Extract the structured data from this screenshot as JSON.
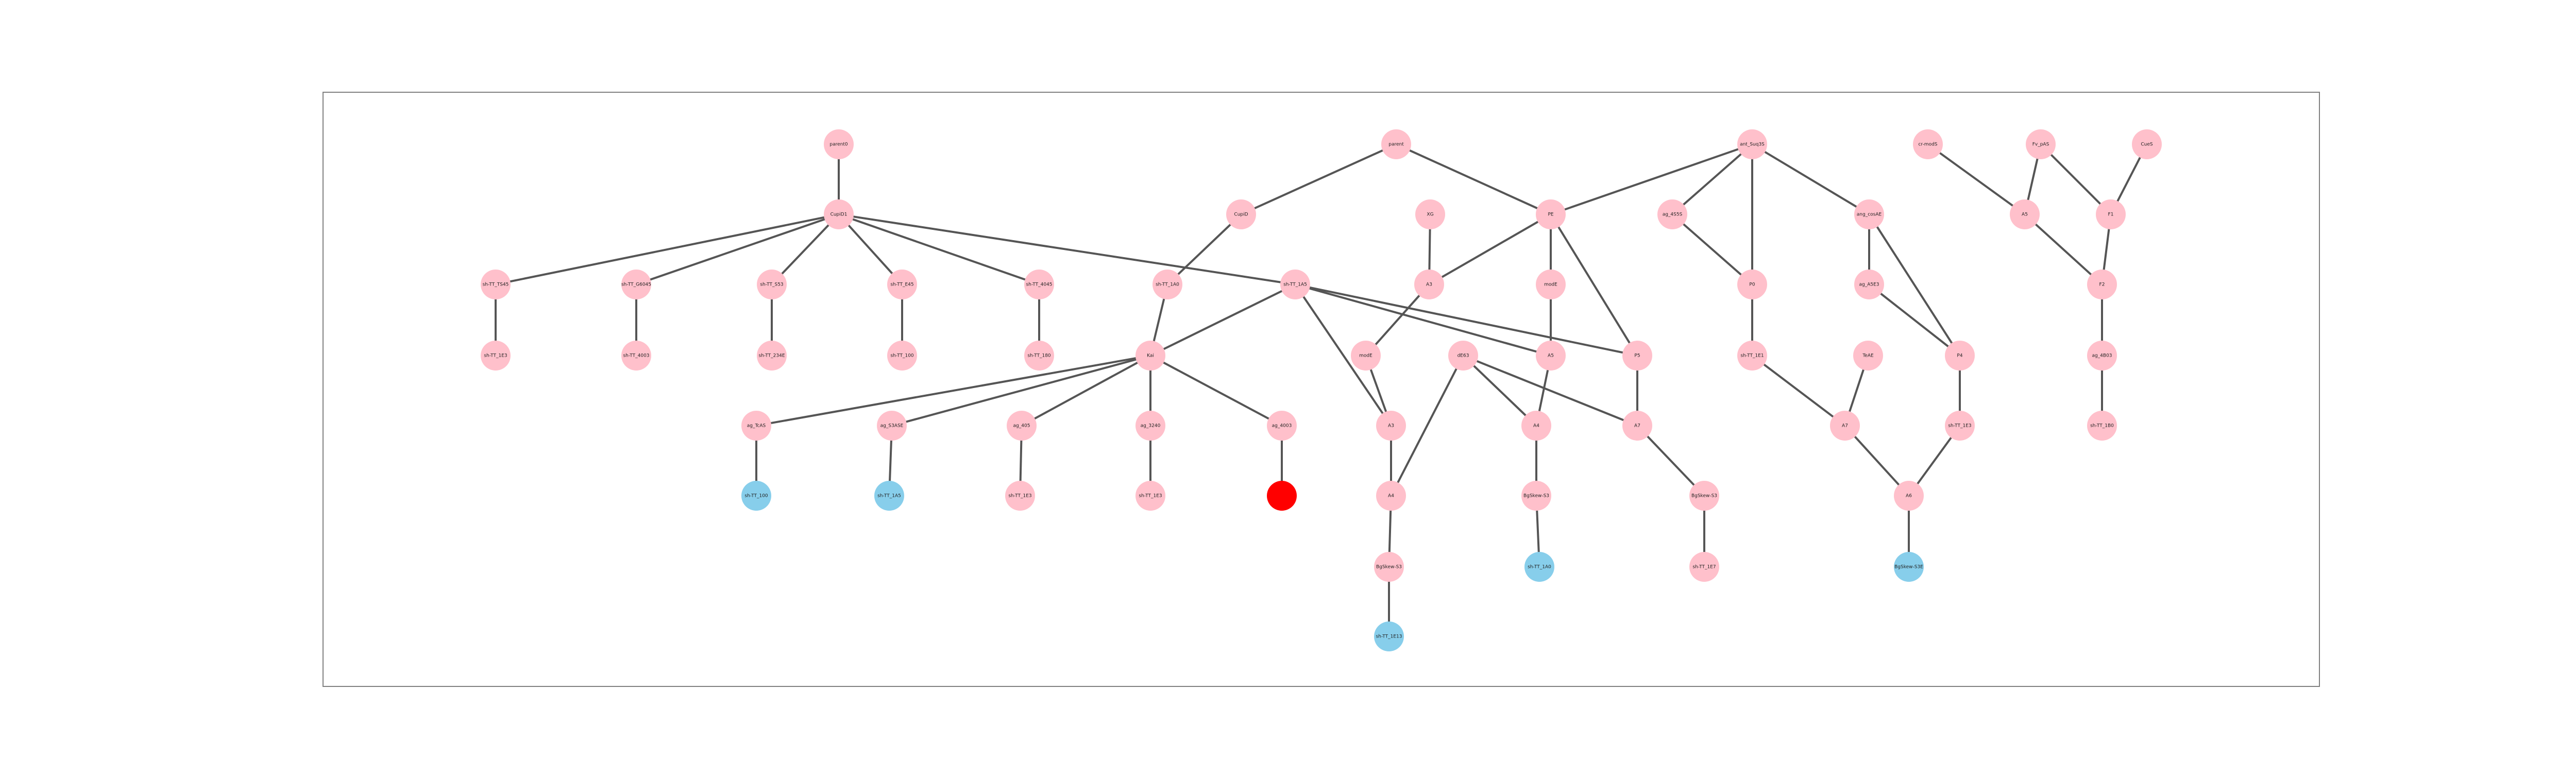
{
  "colors": {
    "default_node": "#ffc0cb",
    "leaf_node": "#87ceeb",
    "highlight_node": "#ff0000",
    "edge": "#555555",
    "frame": "#808080"
  },
  "nodes": [
    {
      "id": "n1",
      "label": "parent0",
      "color": "default_node"
    },
    {
      "id": "n2",
      "label": "CupiD1",
      "color": "default_node"
    },
    {
      "id": "n3",
      "label": "sh-TT_TS45",
      "color": "default_node"
    },
    {
      "id": "n4",
      "label": "sh-TT_G6045",
      "color": "default_node"
    },
    {
      "id": "n5",
      "label": "sh-TT_S53",
      "color": "default_node"
    },
    {
      "id": "n6",
      "label": "sh-TT_E45",
      "color": "default_node"
    },
    {
      "id": "n7",
      "label": "sh-TT_4045",
      "color": "default_node"
    },
    {
      "id": "n8",
      "label": "sh-TT_1E3",
      "color": "default_node"
    },
    {
      "id": "n9",
      "label": "sh-TT_4003",
      "color": "default_node"
    },
    {
      "id": "n10",
      "label": "sh-TT_234E",
      "color": "default_node"
    },
    {
      "id": "n11",
      "label": "sh-TT_100",
      "color": "default_node"
    },
    {
      "id": "n12",
      "label": "sh-TT_180",
      "color": "default_node"
    },
    {
      "id": "n13",
      "label": "sh-TT_4005",
      "color": "default_node"
    },
    {
      "id": "n14",
      "label": "parent",
      "color": "default_node"
    },
    {
      "id": "n15",
      "label": "CupiD",
      "color": "default_node"
    },
    {
      "id": "n16",
      "label": "sh-TT_1A0",
      "color": "default_node"
    },
    {
      "id": "n17",
      "label": "sh-TT_1A5",
      "color": "default_node"
    },
    {
      "id": "n18",
      "label": "Kai",
      "color": "default_node"
    },
    {
      "id": "n19",
      "label": "ag_TcAS",
      "color": "default_node"
    },
    {
      "id": "n20",
      "label": "ag_S3ASE",
      "color": "default_node"
    },
    {
      "id": "n21",
      "label": "ag_405",
      "color": "default_node"
    },
    {
      "id": "n22",
      "label": "ag_3240",
      "color": "default_node"
    },
    {
      "id": "n23",
      "label": "ag_4003",
      "color": "default_node"
    },
    {
      "id": "n24",
      "label": "sh-TT_100",
      "color": "leaf_node"
    },
    {
      "id": "n25",
      "label": "sh-TT_1A5",
      "color": "leaf_node"
    },
    {
      "id": "n26",
      "label": "sh-TT_1E3",
      "color": "default_node"
    },
    {
      "id": "n27",
      "label": "sh-TT_1E3",
      "color": "default_node"
    },
    {
      "id": "n28",
      "label": "",
      "color": "highlight_node"
    },
    {
      "id": "n29",
      "label": "XG",
      "color": "default_node"
    },
    {
      "id": "n30",
      "label": "PE",
      "color": "default_node"
    },
    {
      "id": "n31",
      "label": "A3",
      "color": "default_node"
    },
    {
      "id": "n32",
      "label": "modE",
      "color": "default_node"
    },
    {
      "id": "n33",
      "label": "modE",
      "color": "default_node"
    },
    {
      "id": "n34",
      "label": "dE63",
      "color": "default_node"
    },
    {
      "id": "n35",
      "label": "A5",
      "color": "default_node"
    },
    {
      "id": "n36",
      "label": "P5",
      "color": "default_node"
    },
    {
      "id": "n37",
      "label": "A3",
      "color": "default_node"
    },
    {
      "id": "n38",
      "label": "A4",
      "color": "default_node"
    },
    {
      "id": "n39",
      "label": "A7",
      "color": "default_node"
    },
    {
      "id": "n40",
      "label": "A4",
      "color": "default_node"
    },
    {
      "id": "n41",
      "label": "BgSkew-S3",
      "color": "default_node"
    },
    {
      "id": "n42",
      "label": "BgSkew-S3",
      "color": "default_node"
    },
    {
      "id": "n43",
      "label": "BgSkew-S3",
      "color": "default_node"
    },
    {
      "id": "n44",
      "label": "sh-TT_1A0",
      "color": "leaf_node"
    },
    {
      "id": "n45",
      "label": "sh-TT_1E7",
      "color": "default_node"
    },
    {
      "id": "n46",
      "label": "sh-TT_1E13",
      "color": "leaf_node"
    },
    {
      "id": "n47",
      "label": "ant_Suq3S",
      "color": "default_node"
    },
    {
      "id": "n48",
      "label": "ag_4S5S",
      "color": "default_node"
    },
    {
      "id": "n49",
      "label": "P0",
      "color": "default_node"
    },
    {
      "id": "n50",
      "label": "ang_cosAE",
      "color": "default_node"
    },
    {
      "id": "n51",
      "label": "ag_A5E3",
      "color": "default_node"
    },
    {
      "id": "n52",
      "label": "sh-TT_1E1",
      "color": "default_node"
    },
    {
      "id": "n53",
      "label": "TeAE",
      "color": "default_node"
    },
    {
      "id": "n54",
      "label": "P4",
      "color": "default_node"
    },
    {
      "id": "n55",
      "label": "A7",
      "color": "default_node"
    },
    {
      "id": "n56",
      "label": "sh-TT_1E3",
      "color": "default_node"
    },
    {
      "id": "n57",
      "label": "A6",
      "color": "default_node"
    },
    {
      "id": "n58",
      "label": "BgSkew-S3E",
      "color": "leaf_node"
    },
    {
      "id": "n59",
      "label": "cr-modS",
      "color": "default_node"
    },
    {
      "id": "n60",
      "label": "Fv_pAS",
      "color": "default_node"
    },
    {
      "id": "n61",
      "label": "CueS",
      "color": "default_node"
    },
    {
      "id": "n62",
      "label": "A5",
      "color": "default_node"
    },
    {
      "id": "n63",
      "label": "F1",
      "color": "default_node"
    },
    {
      "id": "n64",
      "label": "F2",
      "color": "default_node"
    },
    {
      "id": "n65",
      "label": "ag_4B03",
      "color": "default_node"
    },
    {
      "id": "n66",
      "label": "sh-TT_1B0",
      "color": "default_node"
    }
  ],
  "edges": [
    [
      "n1",
      "n2"
    ],
    [
      "n2",
      "n3"
    ],
    [
      "n2",
      "n4"
    ],
    [
      "n2",
      "n5"
    ],
    [
      "n2",
      "n6"
    ],
    [
      "n2",
      "n7"
    ],
    [
      "n2",
      "n17"
    ],
    [
      "n3",
      "n8"
    ],
    [
      "n4",
      "n9"
    ],
    [
      "n5",
      "n10"
    ],
    [
      "n6",
      "n11"
    ],
    [
      "n7",
      "n12"
    ],
    [
      "n14",
      "n15"
    ],
    [
      "n14",
      "n30"
    ],
    [
      "n15",
      "n16"
    ],
    [
      "n16",
      "n18"
    ],
    [
      "n17",
      "n18"
    ],
    [
      "n17",
      "n37"
    ],
    [
      "n17",
      "n35"
    ],
    [
      "n17",
      "n36"
    ],
    [
      "n18",
      "n19"
    ],
    [
      "n18",
      "n20"
    ],
    [
      "n18",
      "n21"
    ],
    [
      "n18",
      "n22"
    ],
    [
      "n18",
      "n23"
    ],
    [
      "n19",
      "n24"
    ],
    [
      "n20",
      "n25"
    ],
    [
      "n21",
      "n26"
    ],
    [
      "n22",
      "n27"
    ],
    [
      "n23",
      "n28"
    ],
    [
      "n29",
      "n31"
    ],
    [
      "n30",
      "n31"
    ],
    [
      "n30",
      "n32"
    ],
    [
      "n30",
      "n36"
    ],
    [
      "n31",
      "n33"
    ],
    [
      "n32",
      "n35"
    ],
    [
      "n33",
      "n37"
    ],
    [
      "n34",
      "n38"
    ],
    [
      "n34",
      "n39"
    ],
    [
      "n34",
      "n40"
    ],
    [
      "n35",
      "n38"
    ],
    [
      "n36",
      "n39"
    ],
    [
      "n37",
      "n40"
    ],
    [
      "n38",
      "n41"
    ],
    [
      "n39",
      "n42"
    ],
    [
      "n40",
      "n43"
    ],
    [
      "n41",
      "n44"
    ],
    [
      "n42",
      "n45"
    ],
    [
      "n43",
      "n46"
    ],
    [
      "n47",
      "n30"
    ],
    [
      "n47",
      "n48"
    ],
    [
      "n47",
      "n49"
    ],
    [
      "n47",
      "n50"
    ],
    [
      "n48",
      "n49"
    ],
    [
      "n49",
      "n52"
    ],
    [
      "n50",
      "n51"
    ],
    [
      "n50",
      "n54"
    ],
    [
      "n51",
      "n54"
    ],
    [
      "n52",
      "n55"
    ],
    [
      "n53",
      "n55"
    ],
    [
      "n54",
      "n56"
    ],
    [
      "n55",
      "n57"
    ],
    [
      "n56",
      "n57"
    ],
    [
      "n57",
      "n58"
    ],
    [
      "n59",
      "n62"
    ],
    [
      "n60",
      "n62"
    ],
    [
      "n60",
      "n63"
    ],
    [
      "n61",
      "n63"
    ],
    [
      "n62",
      "n64"
    ],
    [
      "n63",
      "n64"
    ],
    [
      "n64",
      "n65"
    ],
    [
      "n65",
      "n66"
    ]
  ]
}
